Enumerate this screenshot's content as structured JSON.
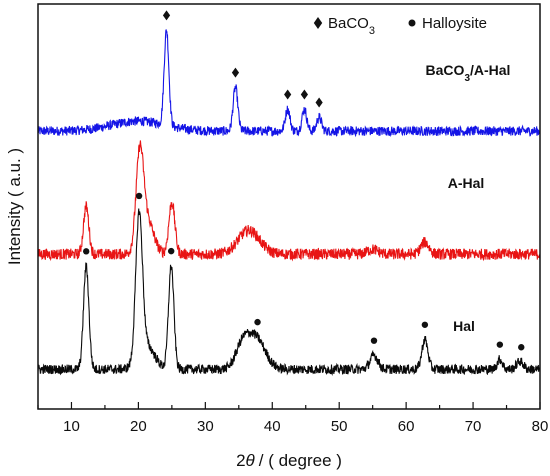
{
  "chart_data": {
    "type": "line",
    "xlabel_theta_symbol": "θ",
    "xlabel_prefix": "2",
    "xlabel_suffix": "/ ( degree )",
    "ylabel": "Intensity ( a.u. )",
    "xlim": [
      5,
      80
    ],
    "xticks": [
      10,
      20,
      30,
      40,
      50,
      60,
      70,
      80
    ],
    "legend": {
      "position": "top-right",
      "entries": [
        {
          "symbol": "diamond",
          "label_main": "BaCO",
          "label_sub": "3"
        },
        {
          "symbol": "circle",
          "label_main": "Halloysite",
          "label_sub": ""
        }
      ]
    },
    "series": [
      {
        "name_main": "BaCO",
        "name_sub": "3",
        "name_rest": "/A-Hal",
        "color": "#1414e6",
        "baseline": 6.0,
        "noise": 0.12,
        "peaks": [
          [
            24.2,
            2.4,
            0.35
          ],
          [
            34.5,
            1.1,
            0.35
          ],
          [
            42.3,
            0.55,
            0.35
          ],
          [
            44.8,
            0.55,
            0.35
          ],
          [
            47.0,
            0.35,
            0.35
          ],
          [
            20.0,
            0.25,
            4.0
          ]
        ],
        "markers": [
          [
            24.2,
            "diamond"
          ],
          [
            34.5,
            "diamond"
          ],
          [
            42.3,
            "diamond"
          ],
          [
            44.8,
            "diamond"
          ],
          [
            47.0,
            "diamond"
          ]
        ]
      },
      {
        "name_main": "A-Hal",
        "name_sub": "",
        "name_rest": "",
        "color": "#e81414",
        "baseline": 2.9,
        "noise": 0.14,
        "peaks": [
          [
            12.2,
            1.2,
            0.4
          ],
          [
            20.2,
            2.2,
            0.55
          ],
          [
            21.2,
            0.9,
            1.0
          ],
          [
            25.0,
            1.3,
            0.45
          ],
          [
            36.5,
            0.6,
            1.6
          ],
          [
            62.8,
            0.3,
            0.6
          ],
          [
            55.0,
            0.12,
            0.8
          ]
        ],
        "markers": []
      },
      {
        "name_main": "Hal",
        "name_sub": "",
        "name_rest": "",
        "color": "#0a0a0a",
        "baseline": 0.0,
        "noise": 0.12,
        "peaks": [
          [
            12.2,
            2.6,
            0.4
          ],
          [
            20.1,
            3.6,
            0.5
          ],
          [
            21.2,
            0.6,
            1.2
          ],
          [
            24.9,
            2.6,
            0.4
          ],
          [
            35.5,
            0.5,
            1.0
          ],
          [
            37.5,
            0.8,
            1.4
          ],
          [
            55.2,
            0.35,
            0.6
          ],
          [
            62.8,
            0.75,
            0.45
          ],
          [
            74.0,
            0.25,
            0.4
          ],
          [
            77.0,
            0.2,
            0.5
          ]
        ],
        "markers": [
          [
            12.2,
            "circle"
          ],
          [
            20.1,
            "circle"
          ],
          [
            24.9,
            "circle"
          ],
          [
            37.8,
            "circle"
          ],
          [
            55.2,
            "circle"
          ],
          [
            62.8,
            "circle"
          ],
          [
            74.0,
            "circle"
          ],
          [
            77.2,
            "circle"
          ]
        ]
      }
    ]
  }
}
